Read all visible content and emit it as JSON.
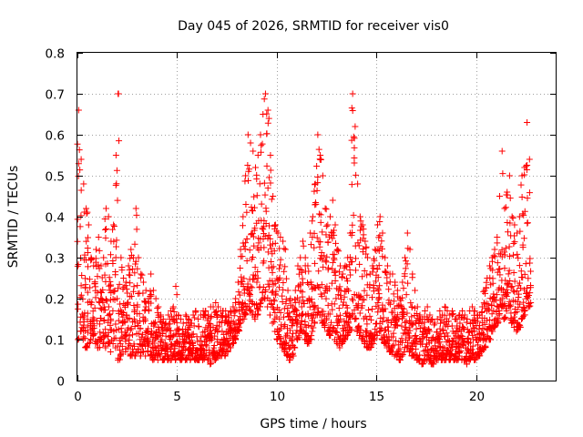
{
  "chart_data": {
    "type": "scatter",
    "title": "Day 045 of 2026, SRMTID for receiver vis0",
    "xlabel": "GPS time / hours",
    "ylabel": "SRMTID / TECUs",
    "xlim": [
      0,
      24
    ],
    "ylim": [
      0,
      0.8
    ],
    "xticks": [
      0,
      5,
      10,
      15,
      20
    ],
    "xtick_labels": [
      "0",
      "5",
      "10",
      "15",
      "20"
    ],
    "yticks": [
      0,
      0.1,
      0.2,
      0.3,
      0.4,
      0.5,
      0.6,
      0.7,
      0.8
    ],
    "ytick_labels": [
      "0",
      "0.1",
      "0.2",
      "0.3",
      "0.4",
      "0.5",
      "0.6",
      "0.7",
      "0.8"
    ],
    "grid": true,
    "marker": "+",
    "marker_color": "#ff0000",
    "series": [
      {
        "name": "SRMTID vis0",
        "x_step_hours": 0.125,
        "x_start_hours": 0,
        "envelope_upper": [
          0.66,
          0.54,
          0.48,
          0.42,
          0.38,
          0.3,
          0.28,
          0.32,
          0.35,
          0.28,
          0.3,
          0.42,
          0.4,
          0.34,
          0.38,
          0.55,
          0.7,
          0.3,
          0.25,
          0.24,
          0.28,
          0.32,
          0.3,
          0.42,
          0.3,
          0.26,
          0.24,
          0.22,
          0.2,
          0.26,
          0.22,
          0.2,
          0.18,
          0.16,
          0.15,
          0.14,
          0.16,
          0.17,
          0.18,
          0.23,
          0.16,
          0.15,
          0.14,
          0.16,
          0.15,
          0.14,
          0.16,
          0.17,
          0.15,
          0.16,
          0.17,
          0.17,
          0.16,
          0.18,
          0.18,
          0.19,
          0.18,
          0.17,
          0.17,
          0.17,
          0.16,
          0.17,
          0.18,
          0.2,
          0.24,
          0.32,
          0.4,
          0.5,
          0.6,
          0.58,
          0.56,
          0.52,
          0.55,
          0.6,
          0.65,
          0.7,
          0.66,
          0.55,
          0.45,
          0.38,
          0.36,
          0.35,
          0.34,
          0.32,
          0.22,
          0.2,
          0.18,
          0.22,
          0.28,
          0.3,
          0.34,
          0.3,
          0.28,
          0.36,
          0.4,
          0.48,
          0.6,
          0.55,
          0.5,
          0.42,
          0.38,
          0.4,
          0.44,
          0.38,
          0.32,
          0.28,
          0.26,
          0.28,
          0.3,
          0.36,
          0.7,
          0.62,
          0.48,
          0.4,
          0.38,
          0.34,
          0.3,
          0.26,
          0.28,
          0.32,
          0.38,
          0.4,
          0.36,
          0.3,
          0.28,
          0.26,
          0.26,
          0.24,
          0.22,
          0.2,
          0.24,
          0.3,
          0.36,
          0.32,
          0.26,
          0.22,
          0.18,
          0.16,
          0.15,
          0.17,
          0.18,
          0.16,
          0.15,
          0.14,
          0.15,
          0.17,
          0.16,
          0.18,
          0.17,
          0.16,
          0.17,
          0.15,
          0.15,
          0.16,
          0.17,
          0.16,
          0.15,
          0.17,
          0.18,
          0.17,
          0.16,
          0.16,
          0.18,
          0.22,
          0.25,
          0.28,
          0.3,
          0.32,
          0.35,
          0.45,
          0.56,
          0.42,
          0.46,
          0.5,
          0.4,
          0.38,
          0.36,
          0.4,
          0.5,
          0.52,
          0.63,
          0.54
        ],
        "envelope_lower": [
          0.1,
          0.12,
          0.1,
          0.08,
          0.09,
          0.1,
          0.11,
          0.09,
          0.08,
          0.1,
          0.09,
          0.08,
          0.09,
          0.07,
          0.09,
          0.08,
          0.05,
          0.06,
          0.07,
          0.07,
          0.08,
          0.06,
          0.07,
          0.06,
          0.07,
          0.06,
          0.07,
          0.06,
          0.07,
          0.06,
          0.05,
          0.06,
          0.05,
          0.06,
          0.05,
          0.06,
          0.05,
          0.05,
          0.06,
          0.05,
          0.06,
          0.05,
          0.06,
          0.05,
          0.06,
          0.05,
          0.06,
          0.05,
          0.05,
          0.06,
          0.05,
          0.06,
          0.05,
          0.04,
          0.06,
          0.05,
          0.06,
          0.06,
          0.07,
          0.06,
          0.07,
          0.08,
          0.09,
          0.1,
          0.12,
          0.14,
          0.15,
          0.16,
          0.18,
          0.17,
          0.16,
          0.15,
          0.16,
          0.18,
          0.2,
          0.2,
          0.18,
          0.16,
          0.14,
          0.12,
          0.1,
          0.09,
          0.08,
          0.07,
          0.06,
          0.05,
          0.06,
          0.08,
          0.1,
          0.12,
          0.12,
          0.1,
          0.09,
          0.1,
          0.12,
          0.14,
          0.16,
          0.16,
          0.14,
          0.13,
          0.12,
          0.11,
          0.12,
          0.1,
          0.09,
          0.08,
          0.09,
          0.1,
          0.11,
          0.12,
          0.16,
          0.15,
          0.12,
          0.11,
          0.1,
          0.09,
          0.08,
          0.08,
          0.09,
          0.1,
          0.11,
          0.12,
          0.1,
          0.09,
          0.08,
          0.07,
          0.07,
          0.06,
          0.06,
          0.05,
          0.06,
          0.07,
          0.08,
          0.07,
          0.06,
          0.06,
          0.05,
          0.05,
          0.04,
          0.05,
          0.05,
          0.05,
          0.04,
          0.05,
          0.05,
          0.06,
          0.05,
          0.05,
          0.06,
          0.05,
          0.06,
          0.05,
          0.05,
          0.06,
          0.05,
          0.05,
          0.04,
          0.05,
          0.06,
          0.05,
          0.06,
          0.06,
          0.07,
          0.08,
          0.1,
          0.1,
          0.12,
          0.13,
          0.14,
          0.16,
          0.18,
          0.15,
          0.17,
          0.18,
          0.14,
          0.13,
          0.12,
          0.13,
          0.15,
          0.16,
          0.2,
          0.18
        ]
      }
    ]
  }
}
